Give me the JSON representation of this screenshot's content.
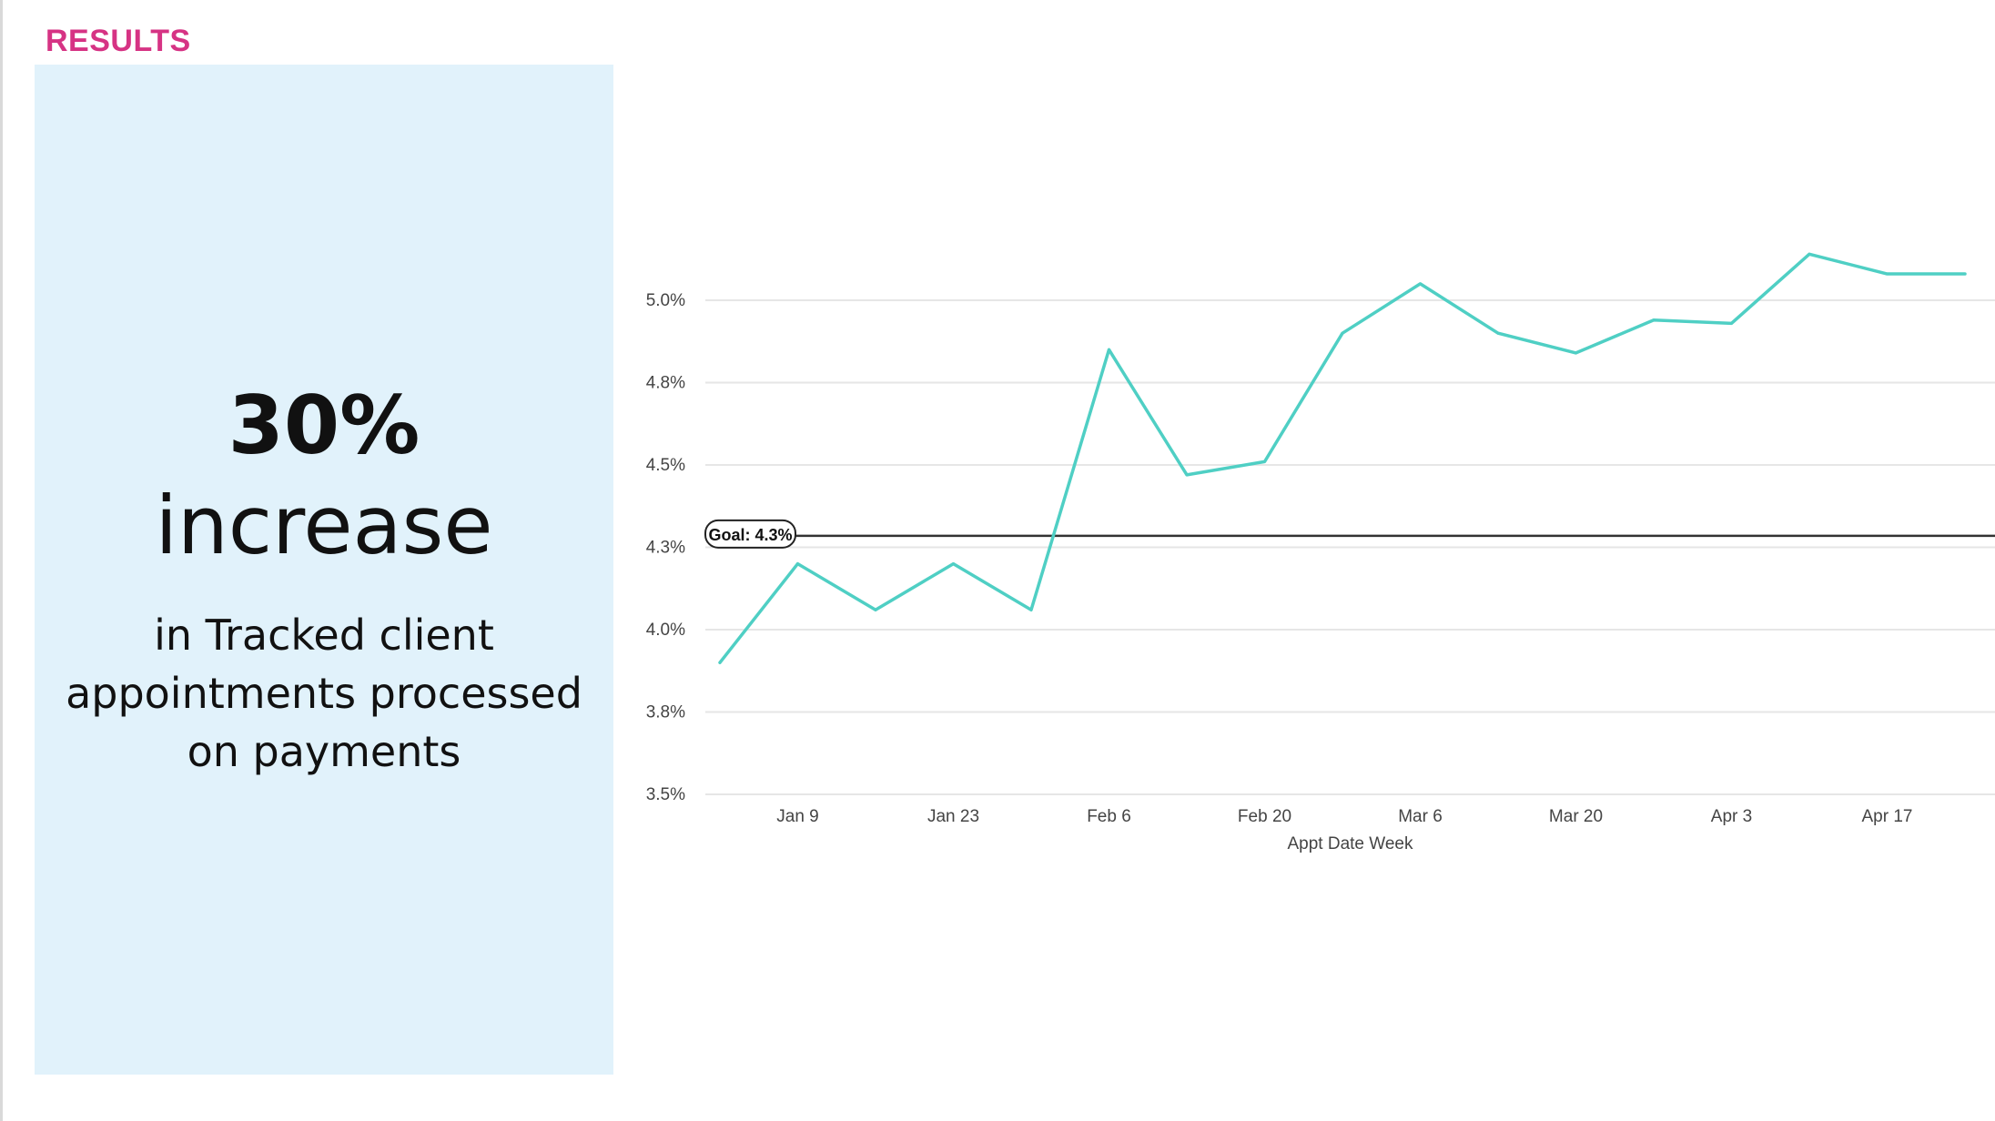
{
  "header": {
    "section_label": "RESULTS"
  },
  "highlight": {
    "value": "30%",
    "word": "increase",
    "description_lines": [
      "in Tracked client",
      "appointments processed",
      "on payments"
    ]
  },
  "colors": {
    "accent": "#d63384",
    "panel_bg": "#e1f2fb",
    "line": "#4fcfc4",
    "goal_line": "#333333",
    "grid": "#e6e6e6",
    "axis_text": "#444444"
  },
  "chart_data": {
    "type": "line",
    "xlabel": "Appt Date Week",
    "ylabel": "",
    "ylim": [
      3.5,
      5.0
    ],
    "y_ticks": [
      3.5,
      3.75,
      4.0,
      4.25,
      4.5,
      4.75,
      5.0
    ],
    "y_tick_labels": [
      "3.5%",
      "3.8%",
      "4.0%",
      "4.3%",
      "4.5%",
      "4.8%",
      "5.0%"
    ],
    "x_tick_labels": [
      "Jan 9",
      "Jan 23",
      "Feb 6",
      "Feb 20",
      "Mar 6",
      "Mar 20",
      "Apr 3",
      "Apr 17"
    ],
    "x": [
      "Jan 2",
      "Jan 9",
      "Jan 16",
      "Jan 23",
      "Jan 30",
      "Feb 6",
      "Feb 13",
      "Feb 20",
      "Feb 27",
      "Mar 6",
      "Mar 13",
      "Mar 20",
      "Mar 27",
      "Apr 3",
      "Apr 10",
      "Apr 17",
      "Apr 24"
    ],
    "series": [
      {
        "values": [
          3.9,
          4.2,
          4.06,
          4.2,
          4.06,
          4.85,
          4.47,
          4.51,
          4.9,
          5.05,
          4.9,
          4.84,
          4.94,
          4.93,
          5.14,
          5.08,
          5.08
        ]
      }
    ],
    "goal": {
      "value": 4.285,
      "label": "Goal: 4.3%"
    },
    "grid": true,
    "legend": "none"
  }
}
